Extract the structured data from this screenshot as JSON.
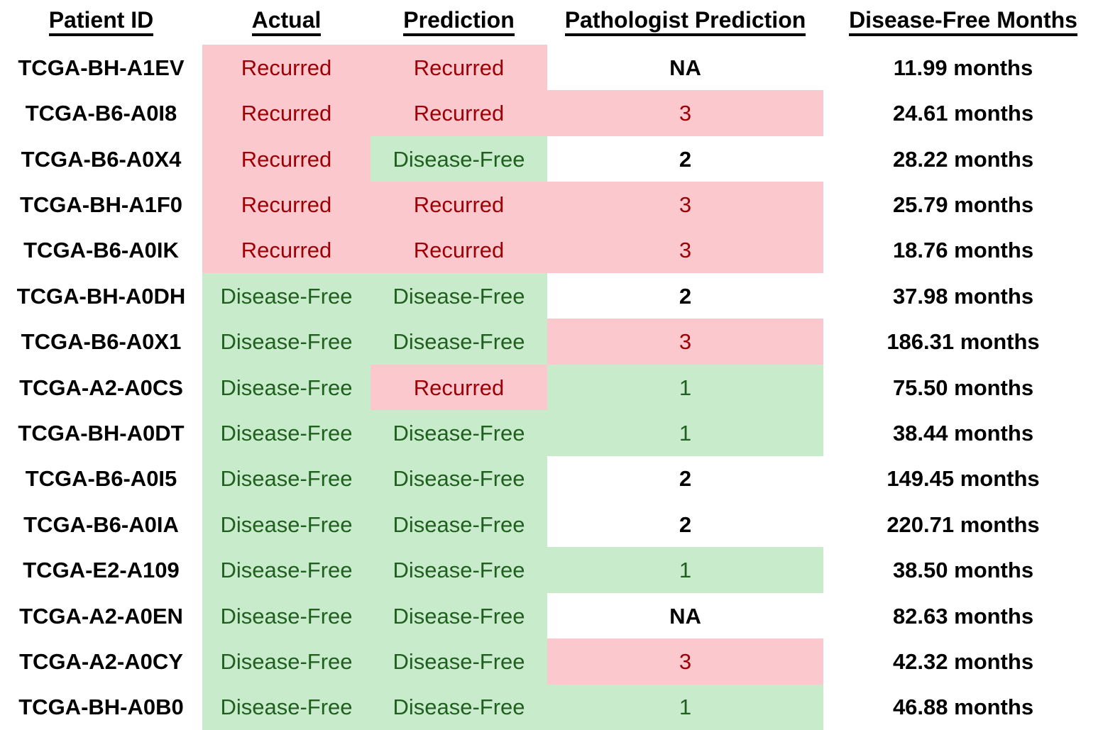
{
  "colors": {
    "red_fill": "#FBC8CE",
    "red_text": "#9C0006",
    "green_fill": "#C8EBCC",
    "green_text": "#20601F",
    "black_text": "#000000",
    "background": "#FFFFFF"
  },
  "chart_data": {
    "type": "table",
    "columns": [
      "Patient ID",
      "Actual",
      "Prediction",
      "Pathologist Prediction",
      "Disease-Free Months"
    ],
    "legend_note_colors": {
      "red_fill_means": "Recurred / pathologist score 3",
      "green_fill_means": "Disease-Free / pathologist score 1",
      "white_fill_means": "NA or pathologist score 2"
    },
    "rows": [
      {
        "cells": [
          "TCGA-BH-A1EV",
          "Recurred",
          "Recurred",
          "NA",
          "11.99 months"
        ],
        "fills": [
          "none",
          "red",
          "red",
          "none",
          "none"
        ]
      },
      {
        "cells": [
          "TCGA-B6-A0I8",
          "Recurred",
          "Recurred",
          "3",
          "24.61 months"
        ],
        "fills": [
          "none",
          "red",
          "red",
          "red",
          "none"
        ]
      },
      {
        "cells": [
          "TCGA-B6-A0X4",
          "Recurred",
          "Disease-Free",
          "2",
          "28.22 months"
        ],
        "fills": [
          "none",
          "red",
          "green",
          "none",
          "none"
        ]
      },
      {
        "cells": [
          "TCGA-BH-A1F0",
          "Recurred",
          "Recurred",
          "3",
          "25.79 months"
        ],
        "fills": [
          "none",
          "red",
          "red",
          "red",
          "none"
        ]
      },
      {
        "cells": [
          "TCGA-B6-A0IK",
          "Recurred",
          "Recurred",
          "3",
          "18.76 months"
        ],
        "fills": [
          "none",
          "red",
          "red",
          "red",
          "none"
        ]
      },
      {
        "cells": [
          "TCGA-BH-A0DH",
          "Disease-Free",
          "Disease-Free",
          "2",
          "37.98 months"
        ],
        "fills": [
          "none",
          "green",
          "green",
          "none",
          "none"
        ]
      },
      {
        "cells": [
          "TCGA-B6-A0X1",
          "Disease-Free",
          "Disease-Free",
          "3",
          "186.31 months"
        ],
        "fills": [
          "none",
          "green",
          "green",
          "red",
          "none"
        ]
      },
      {
        "cells": [
          "TCGA-A2-A0CS",
          "Disease-Free",
          "Recurred",
          "1",
          "75.50 months"
        ],
        "fills": [
          "none",
          "green",
          "red",
          "green",
          "none"
        ]
      },
      {
        "cells": [
          "TCGA-BH-A0DT",
          "Disease-Free",
          "Disease-Free",
          "1",
          "38.44 months"
        ],
        "fills": [
          "none",
          "green",
          "green",
          "green",
          "none"
        ]
      },
      {
        "cells": [
          "TCGA-B6-A0I5",
          "Disease-Free",
          "Disease-Free",
          "2",
          "149.45 months"
        ],
        "fills": [
          "none",
          "green",
          "green",
          "none",
          "none"
        ]
      },
      {
        "cells": [
          "TCGA-B6-A0IA",
          "Disease-Free",
          "Disease-Free",
          "2",
          "220.71 months"
        ],
        "fills": [
          "none",
          "green",
          "green",
          "none",
          "none"
        ]
      },
      {
        "cells": [
          "TCGA-E2-A109",
          "Disease-Free",
          "Disease-Free",
          "1",
          "38.50 months"
        ],
        "fills": [
          "none",
          "green",
          "green",
          "green",
          "none"
        ]
      },
      {
        "cells": [
          "TCGA-A2-A0EN",
          "Disease-Free",
          "Disease-Free",
          "NA",
          "82.63 months"
        ],
        "fills": [
          "none",
          "green",
          "green",
          "none",
          "none"
        ]
      },
      {
        "cells": [
          "TCGA-A2-A0CY",
          "Disease-Free",
          "Disease-Free",
          "3",
          "42.32 months"
        ],
        "fills": [
          "none",
          "green",
          "green",
          "red",
          "none"
        ]
      },
      {
        "cells": [
          "TCGA-BH-A0B0",
          "Disease-Free",
          "Disease-Free",
          "1",
          "46.88 months"
        ],
        "fills": [
          "none",
          "green",
          "green",
          "green",
          "none"
        ]
      }
    ]
  }
}
